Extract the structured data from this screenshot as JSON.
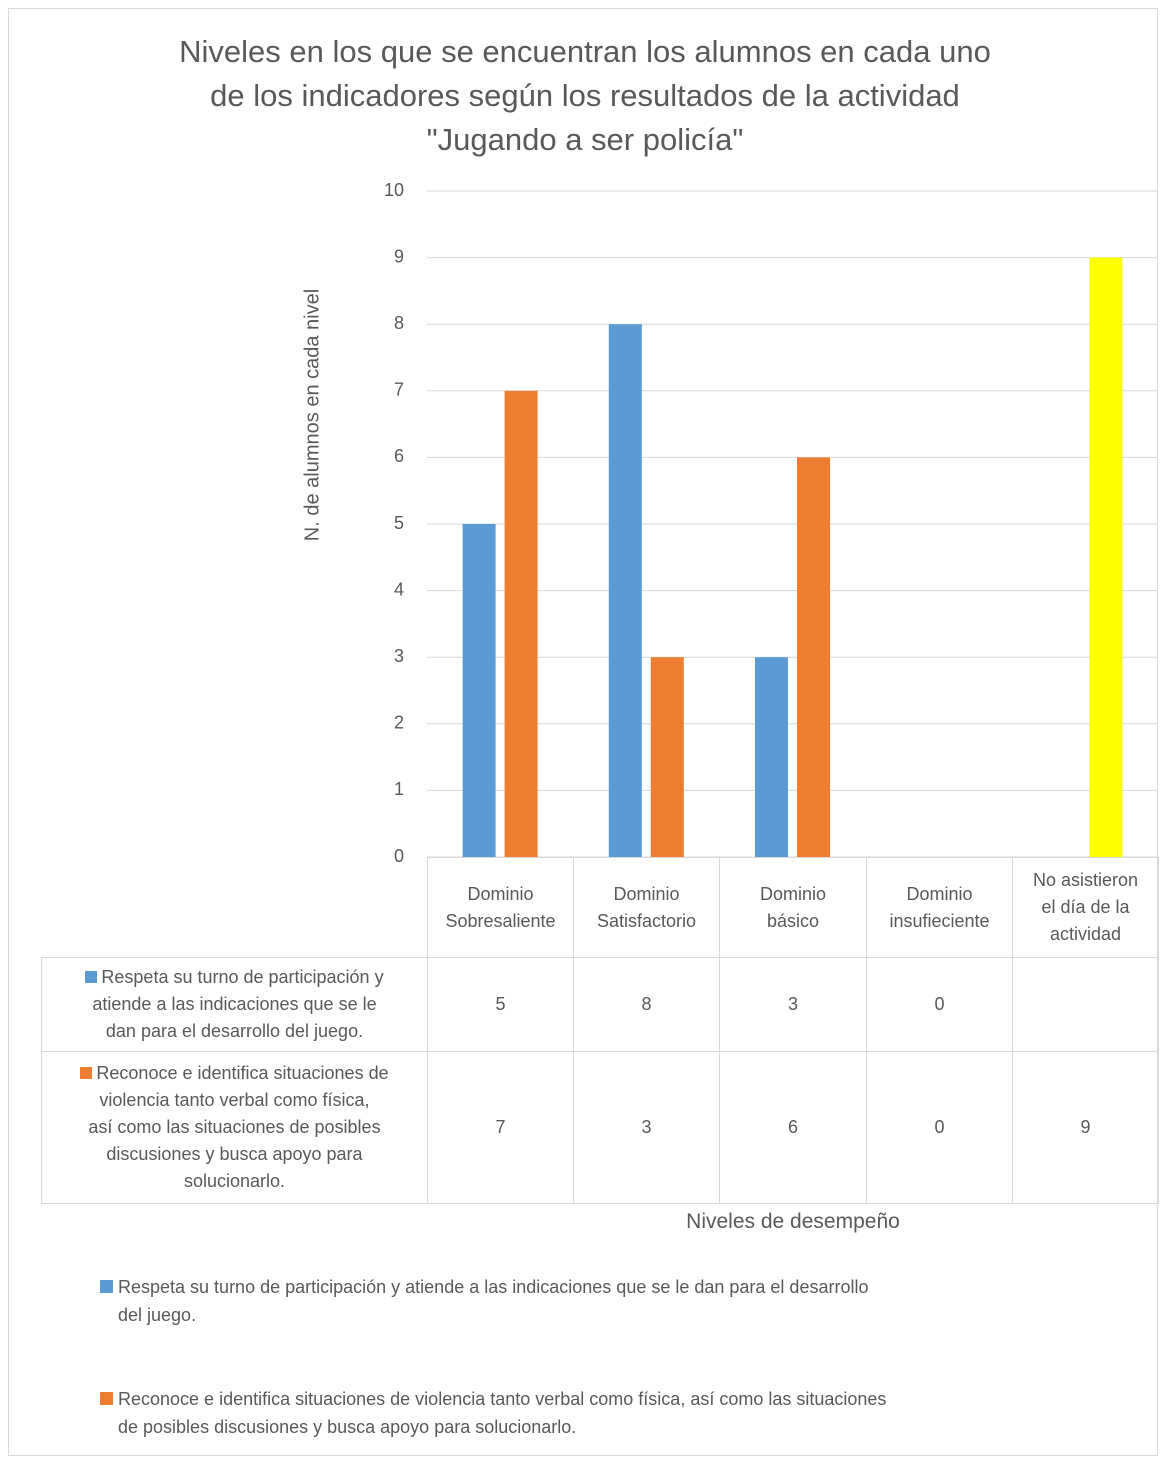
{
  "chart_data": {
    "type": "bar",
    "title_lines": [
      "Niveles en los que se encuentran los alumnos en cada uno",
      "de los indicadores según los resultados de la actividad",
      "\"Jugando a ser policía\""
    ],
    "xlabel": "Niveles de desempeño",
    "ylabel": "N. de alumnos en cada nivel",
    "ylim": [
      0,
      10
    ],
    "yticks": [
      "0",
      "1",
      "2",
      "3",
      "4",
      "5",
      "6",
      "7",
      "8",
      "9",
      "10"
    ],
    "grid": true,
    "legend_position": "bottom",
    "categories": [
      [
        "Dominio",
        "Sobresaliente"
      ],
      [
        "Dominio",
        "Satisfactorio"
      ],
      [
        "Dominio",
        "básico"
      ],
      [
        "Dominio",
        "insufieciente"
      ],
      [
        "No asistieron",
        "el día de la",
        "actividad"
      ]
    ],
    "series": [
      {
        "name": "Respeta su turno de participación y atiende a las indicaciones que se le dan para el desarrollo del juego.",
        "table_label_lines": [
          "Respeta su turno de participación y",
          "atiende a las indicaciones que se le",
          "dan para el desarrollo del juego."
        ],
        "legend_lines": [
          "Respeta su turno de participación y atiende a las indicaciones que se le dan para el desarrollo",
          "del juego."
        ],
        "color": "#5b9bd5",
        "values": [
          5,
          8,
          3,
          0,
          null
        ],
        "table_values": [
          "5",
          "8",
          "3",
          "0",
          ""
        ]
      },
      {
        "name": "Reconoce e identifica situaciones de violencia tanto verbal como física, así como las situaciones de posibles discusiones y busca apoyo para solucionarlo.",
        "table_label_lines": [
          "Reconoce e identifica situaciones de",
          "violencia tanto verbal como física,",
          "así como las situaciones de posibles",
          "discusiones y busca apoyo para",
          "solucionarlo."
        ],
        "legend_lines": [
          "Reconoce e identifica situaciones de violencia tanto verbal como física, así como las situaciones",
          "de posibles discusiones y busca apoyo para solucionarlo."
        ],
        "color": "#ed7d31",
        "values": [
          7,
          3,
          6,
          0,
          9
        ],
        "table_values": [
          "7",
          "3",
          "6",
          "0",
          "9"
        ]
      }
    ],
    "highlight": {
      "category_index": 4,
      "color": "#ffff00"
    }
  }
}
